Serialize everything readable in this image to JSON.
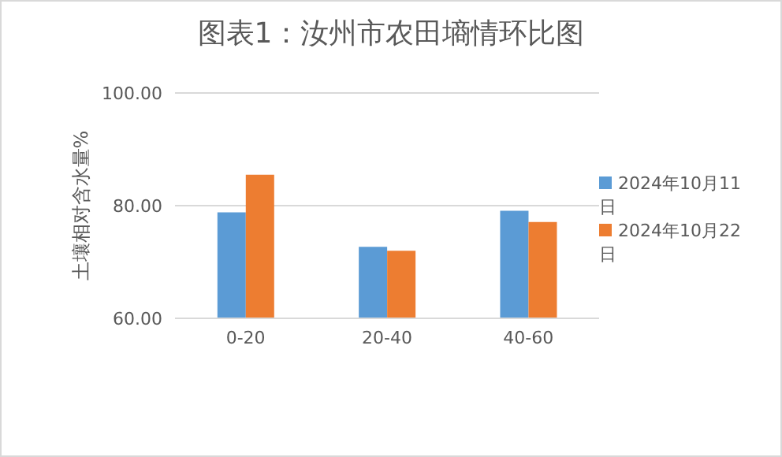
{
  "chart_data": {
    "type": "bar",
    "title": "图表1：汝州市农田墒情环比图",
    "ylabel": "土壤相对含水量%",
    "categories": [
      "0-20",
      "20-40",
      "40-60"
    ],
    "series": [
      {
        "name": "2024年10月11日",
        "color": "#5b9bd5",
        "values": [
          78.8,
          72.7,
          79.1
        ]
      },
      {
        "name": "2024年10月22日",
        "color": "#ed7d31",
        "values": [
          85.5,
          72.0,
          77.1
        ]
      }
    ],
    "ylim": [
      60,
      100
    ],
    "yticks": [
      {
        "value": 60,
        "label": "60.00"
      },
      {
        "value": 80,
        "label": "80.00"
      },
      {
        "value": 100,
        "label": "100.00"
      }
    ],
    "grid": "y",
    "legend": "right"
  }
}
